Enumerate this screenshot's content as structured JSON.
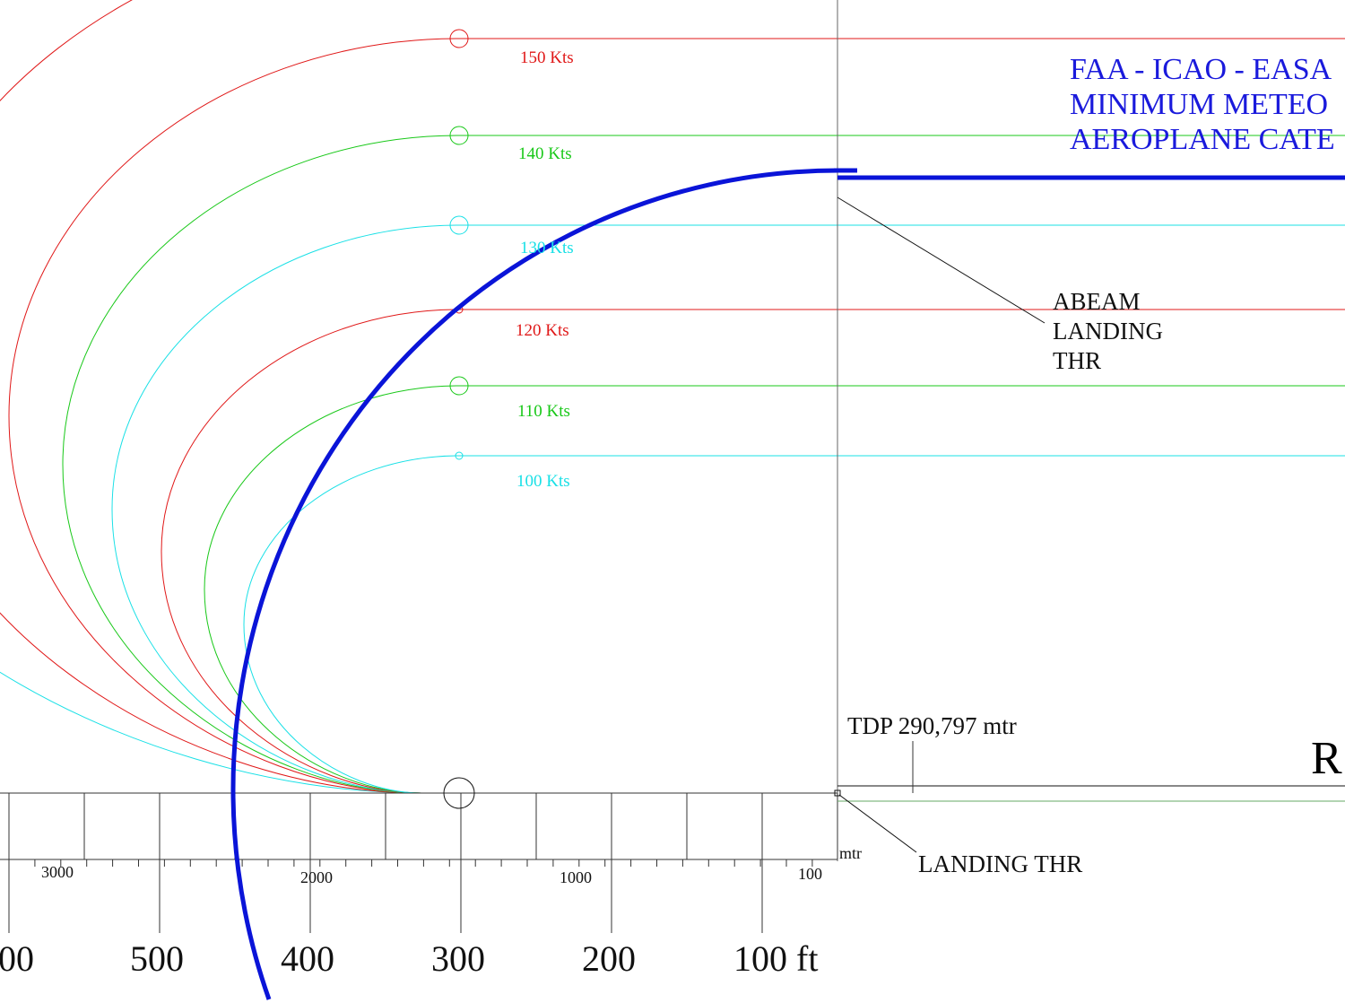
{
  "speeds": [
    "150 Kts",
    "140 Kts",
    "130 Kts",
    "120 Kts",
    "110 Kts",
    "100 Kts"
  ],
  "title": [
    "FAA - ICAO - EASA",
    "MINIMUM METEO",
    "AEROPLANE CATE"
  ],
  "abeam": [
    "ABEAM",
    "LANDING",
    "THR"
  ],
  "tdp": "TDP 290,797 mtr",
  "runway_label": "R",
  "landing_thr": "LANDING THR",
  "meter_scale": {
    "unit": "mtr",
    "labels": [
      "3000",
      "2000",
      "1000",
      "100"
    ]
  },
  "feet_scale": [
    "00",
    "500",
    "400",
    "300",
    "200",
    "100 ft"
  ]
}
